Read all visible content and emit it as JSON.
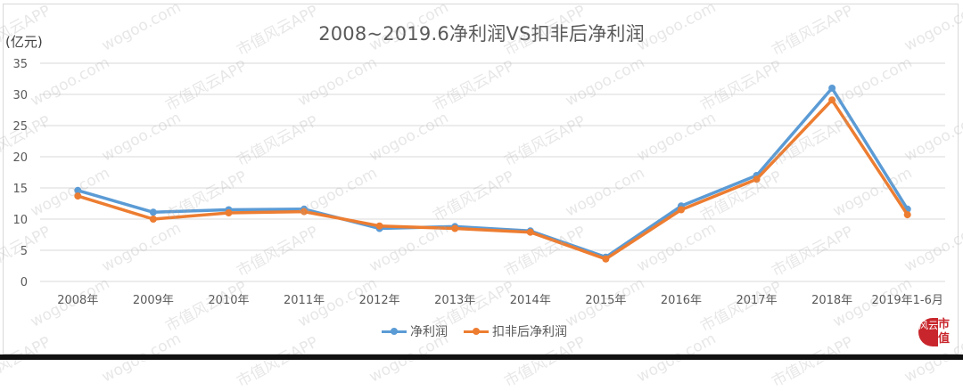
{
  "chart_data": {
    "type": "line",
    "title": "2008~2019.6净利润VS扣非后净利润",
    "ylabel": "(亿元)",
    "xlabel": "",
    "ylim": [
      0,
      35
    ],
    "yticks": [
      0,
      5,
      10,
      15,
      20,
      25,
      30,
      35
    ],
    "grid": true,
    "legend_position": "bottom",
    "categories": [
      "2008年",
      "2009年",
      "2010年",
      "2011年",
      "2012年",
      "2013年",
      "2014年",
      "2015年",
      "2016年",
      "2017年",
      "2018年",
      "2019年1-6月"
    ],
    "series": [
      {
        "name": "净利润",
        "color": "#5b9bd5",
        "values": [
          14.6,
          11.1,
          11.5,
          11.6,
          8.5,
          8.8,
          8.1,
          3.9,
          12.1,
          17.0,
          31.0,
          11.6
        ]
      },
      {
        "name": "扣非后净利润",
        "color": "#ed7d31",
        "values": [
          13.7,
          10.0,
          11.0,
          11.2,
          8.9,
          8.5,
          7.9,
          3.6,
          11.5,
          16.4,
          29.1,
          10.7
        ]
      }
    ]
  },
  "watermark": {
    "text_a": "市值风云APP",
    "text_b": "wogoo.com"
  },
  "logo": {
    "left": "风云",
    "right": "市值"
  }
}
